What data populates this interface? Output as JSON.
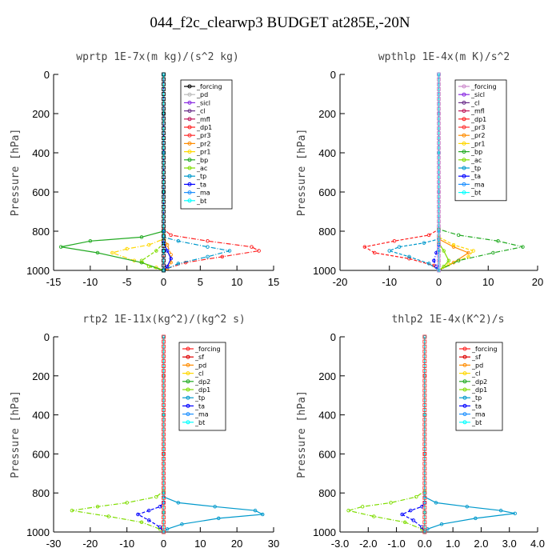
{
  "title": "044_f2c_clearwp3  BUDGET at285E,-20N",
  "chart_data": [
    {
      "type": "line",
      "title": "wprtp   1E-7x(m kg)/(s^2 kg)",
      "ylabel": "Pressure [hPa]",
      "ylim": [
        0,
        1000
      ],
      "xlim": [
        -15,
        15
      ],
      "xticks": [
        "-15",
        "-10",
        "-5",
        "0",
        "5",
        "10",
        "15"
      ],
      "yticks": [
        "0",
        "200",
        "400",
        "600",
        "800",
        "1000"
      ],
      "legend": "top-right",
      "series": [
        {
          "name": "_forcing",
          "color": "#000000",
          "x": [
            0,
            0,
            0,
            0,
            0,
            0,
            0
          ],
          "y": [
            0,
            200,
            400,
            600,
            800,
            900,
            1000
          ]
        },
        {
          "name": "_pd",
          "color": "#bbbbbb",
          "x": [
            0,
            0,
            0,
            0,
            0
          ],
          "y": [
            0,
            400,
            800,
            900,
            1000
          ]
        },
        {
          "name": "_sicl",
          "color": "#8a2be2",
          "x": [
            0,
            0,
            0,
            0,
            0
          ],
          "y": [
            0,
            400,
            800,
            900,
            1000
          ]
        },
        {
          "name": "_cl",
          "color": "#6b2f8a",
          "x": [
            0,
            0,
            0,
            0,
            0
          ],
          "y": [
            0,
            400,
            800,
            900,
            1000
          ]
        },
        {
          "name": "_mfl",
          "color": "#c0185a",
          "x": [
            0,
            0,
            0,
            0,
            0
          ],
          "y": [
            0,
            400,
            800,
            900,
            1000
          ]
        },
        {
          "name": "_dp1",
          "color": "#ff2020",
          "x": [
            0,
            0,
            1,
            6,
            12,
            13,
            8,
            3,
            0.5,
            0
          ],
          "y": [
            0,
            790,
            820,
            850,
            880,
            900,
            930,
            960,
            990,
            1000
          ]
        },
        {
          "name": "_pr3",
          "color": "#ff3030",
          "x": [
            0,
            0,
            0,
            0,
            0
          ],
          "y": [
            0,
            400,
            800,
            900,
            1000
          ]
        },
        {
          "name": "_pr2",
          "color": "#ff8c00",
          "x": [
            0,
            0,
            0.5,
            1,
            1,
            0.5,
            0
          ],
          "y": [
            0,
            820,
            870,
            920,
            960,
            990,
            1000
          ]
        },
        {
          "name": "_pr1",
          "color": "#ffd700",
          "x": [
            0,
            0,
            -2,
            -5,
            -7,
            -4,
            -1,
            0
          ],
          "y": [
            0,
            840,
            870,
            890,
            910,
            950,
            985,
            1000
          ]
        },
        {
          "name": "_bp",
          "color": "#22aa22",
          "x": [
            0,
            0,
            -3,
            -10,
            -14,
            -9,
            -3,
            0
          ],
          "y": [
            0,
            800,
            830,
            850,
            880,
            910,
            960,
            1000
          ]
        },
        {
          "name": "_ac",
          "color": "#7fdd00",
          "x": [
            0,
            0,
            -1,
            -3,
            -2,
            0
          ],
          "y": [
            0,
            860,
            900,
            950,
            980,
            1000
          ]
        },
        {
          "name": "_tp",
          "color": "#0099cc",
          "x": [
            0,
            0,
            2,
            6,
            9,
            6,
            2,
            0
          ],
          "y": [
            0,
            830,
            850,
            880,
            900,
            930,
            965,
            1000
          ]
        },
        {
          "name": "_ta",
          "color": "#0000ff",
          "x": [
            0,
            0,
            0.5,
            1,
            0.5,
            0
          ],
          "y": [
            0,
            860,
            900,
            940,
            980,
            1000
          ]
        },
        {
          "name": "_ma",
          "color": "#1e90ff",
          "x": [
            0,
            0,
            0,
            0,
            0
          ],
          "y": [
            0,
            400,
            800,
            900,
            1000
          ]
        },
        {
          "name": "_bt",
          "color": "#00ffff",
          "x": [
            0,
            0,
            0,
            0,
            0
          ],
          "y": [
            0,
            400,
            800,
            900,
            1000
          ]
        }
      ]
    },
    {
      "type": "line",
      "title": "wpthlp   1E-4x(m K)/s^2",
      "ylabel": "Pressure [hPa]",
      "ylim": [
        0,
        1000
      ],
      "xlim": [
        -20,
        20
      ],
      "xticks": [
        "-20",
        "-10",
        "0",
        "10",
        "20"
      ],
      "yticks": [
        "0",
        "200",
        "400",
        "600",
        "800",
        "1000"
      ],
      "legend": "top-right",
      "series": [
        {
          "name": "_forcing",
          "color": "#cc88cc",
          "x": [
            0,
            0,
            0,
            0,
            0,
            0,
            0
          ],
          "y": [
            0,
            200,
            400,
            600,
            800,
            900,
            1000
          ]
        },
        {
          "name": "_sicl",
          "color": "#8a2be2",
          "x": [
            0,
            0,
            0,
            0,
            0
          ],
          "y": [
            0,
            400,
            800,
            900,
            1000
          ]
        },
        {
          "name": "_cl",
          "color": "#6b2f8a",
          "x": [
            0,
            0,
            0,
            0,
            0
          ],
          "y": [
            0,
            400,
            800,
            900,
            1000
          ]
        },
        {
          "name": "_mfl",
          "color": "#c0185a",
          "x": [
            0,
            0,
            0,
            0,
            0
          ],
          "y": [
            0,
            400,
            800,
            900,
            1000
          ]
        },
        {
          "name": "_dp1",
          "color": "#ff2020",
          "x": [
            0,
            0,
            -2,
            -9,
            -15,
            -13,
            -6,
            -1,
            0
          ],
          "y": [
            0,
            790,
            820,
            850,
            880,
            910,
            940,
            975,
            1000
          ]
        },
        {
          "name": "_pr3",
          "color": "#ff3030",
          "x": [
            0,
            0,
            0,
            0,
            0
          ],
          "y": [
            0,
            400,
            800,
            900,
            1000
          ]
        },
        {
          "name": "_pr2",
          "color": "#ff8c00",
          "x": [
            0,
            0,
            3,
            6,
            3,
            0
          ],
          "y": [
            0,
            840,
            880,
            910,
            960,
            1000
          ]
        },
        {
          "name": "_pr1",
          "color": "#ffd700",
          "x": [
            0,
            0,
            3,
            7,
            6,
            2,
            0
          ],
          "y": [
            0,
            830,
            870,
            900,
            930,
            970,
            1000
          ]
        },
        {
          "name": "_bp",
          "color": "#22aa22",
          "x": [
            0,
            0,
            4,
            12,
            17,
            11,
            4,
            0
          ],
          "y": [
            0,
            790,
            820,
            850,
            880,
            910,
            950,
            1000
          ]
        },
        {
          "name": "_ac",
          "color": "#7fdd00",
          "x": [
            0,
            0,
            1,
            2,
            1,
            0
          ],
          "y": [
            0,
            860,
            900,
            950,
            980,
            1000
          ]
        },
        {
          "name": "_tp",
          "color": "#0099cc",
          "x": [
            0,
            0,
            -3,
            -8,
            -10,
            -6,
            -2,
            0
          ],
          "y": [
            0,
            840,
            860,
            880,
            900,
            930,
            965,
            1000
          ]
        },
        {
          "name": "_ta",
          "color": "#0000ff",
          "x": [
            0,
            0,
            -0.5,
            -1,
            -0.5,
            0
          ],
          "y": [
            0,
            870,
            910,
            950,
            980,
            1000
          ]
        },
        {
          "name": "_ma",
          "color": "#1e90ff",
          "x": [
            0,
            0,
            0,
            0,
            0
          ],
          "y": [
            0,
            400,
            800,
            900,
            1000
          ]
        },
        {
          "name": "_bt",
          "color": "#00ffff",
          "x": [
            0,
            0,
            0,
            0,
            0
          ],
          "y": [
            0,
            400,
            800,
            900,
            1000
          ]
        }
      ]
    },
    {
      "type": "line",
      "title": "rtp2   1E-11x(kg^2)/(kg^2 s)",
      "ylabel": "Pressure [hPa]",
      "ylim": [
        0,
        1000
      ],
      "xlim": [
        -30,
        30
      ],
      "xticks": [
        "-30",
        "-20",
        "-10",
        "0",
        "10",
        "20",
        "30"
      ],
      "yticks": [
        "0",
        "200",
        "400",
        "600",
        "800",
        "1000"
      ],
      "legend": "top-right",
      "series": [
        {
          "name": "_forcing",
          "color": "#ff2020",
          "x": [
            0,
            0,
            0,
            0,
            0,
            0,
            0
          ],
          "y": [
            0,
            200,
            400,
            600,
            800,
            900,
            1000
          ]
        },
        {
          "name": "_sf",
          "color": "#dd0000",
          "x": [
            0,
            0,
            0,
            0,
            0
          ],
          "y": [
            0,
            400,
            800,
            900,
            1000
          ]
        },
        {
          "name": "_pd",
          "color": "#ff8c00",
          "x": [
            0,
            0,
            0,
            0,
            0
          ],
          "y": [
            0,
            400,
            800,
            900,
            1000
          ]
        },
        {
          "name": "_cl",
          "color": "#ffd700",
          "x": [
            0,
            0,
            0,
            0,
            0
          ],
          "y": [
            0,
            400,
            800,
            900,
            1000
          ]
        },
        {
          "name": "_dp2",
          "color": "#22aa22",
          "x": [
            0,
            0,
            0,
            0,
            0
          ],
          "y": [
            0,
            400,
            800,
            900,
            1000
          ]
        },
        {
          "name": "_dp1",
          "color": "#7fdd00",
          "x": [
            0,
            0,
            -2,
            -10,
            -18,
            -25,
            -15,
            -6,
            -1,
            0
          ],
          "y": [
            0,
            790,
            820,
            850,
            870,
            890,
            920,
            950,
            985,
            1000
          ]
        },
        {
          "name": "_tp",
          "color": "#0099cc",
          "x": [
            0,
            0,
            4,
            14,
            25,
            27,
            15,
            5,
            1,
            0
          ],
          "y": [
            0,
            820,
            850,
            870,
            890,
            910,
            930,
            960,
            985,
            1000
          ]
        },
        {
          "name": "_ta",
          "color": "#0000ff",
          "x": [
            0,
            0,
            -1,
            -4,
            -7,
            -4,
            -1,
            0
          ],
          "y": [
            0,
            850,
            870,
            890,
            910,
            940,
            975,
            1000
          ]
        },
        {
          "name": "_ma",
          "color": "#1e90ff",
          "x": [
            0,
            0,
            0,
            0,
            0
          ],
          "y": [
            0,
            400,
            800,
            900,
            1000
          ]
        },
        {
          "name": "_bt",
          "color": "#00ffff",
          "x": [
            0,
            0,
            0,
            0,
            0
          ],
          "y": [
            0,
            400,
            800,
            900,
            1000
          ]
        }
      ]
    },
    {
      "type": "line",
      "title": "thlp2   1E-4x(K^2)/s",
      "ylabel": "Pressure [hPa]",
      "ylim": [
        0,
        1000
      ],
      "xlim": [
        -3,
        4
      ],
      "xticks": [
        "-3.0",
        "-2.0",
        "-1.0",
        "0.0",
        "1.0",
        "2.0",
        "3.0",
        "4.0"
      ],
      "yticks": [
        "0",
        "200",
        "400",
        "600",
        "800",
        "1000"
      ],
      "legend": "top-right",
      "series": [
        {
          "name": "_forcing",
          "color": "#ff2020",
          "x": [
            0,
            0,
            0,
            0,
            0,
            0,
            0
          ],
          "y": [
            0,
            200,
            400,
            600,
            800,
            900,
            1000
          ]
        },
        {
          "name": "_sf",
          "color": "#dd0000",
          "x": [
            0,
            0,
            0,
            0,
            0
          ],
          "y": [
            0,
            400,
            800,
            900,
            1000
          ]
        },
        {
          "name": "_pd",
          "color": "#ff8c00",
          "x": [
            0,
            0,
            0,
            0,
            0
          ],
          "y": [
            0,
            400,
            800,
            900,
            1000
          ]
        },
        {
          "name": "_cl",
          "color": "#ffd700",
          "x": [
            0,
            0,
            0,
            0,
            0
          ],
          "y": [
            0,
            400,
            800,
            900,
            1000
          ]
        },
        {
          "name": "_dp2",
          "color": "#22aa22",
          "x": [
            0,
            0,
            0,
            0,
            0
          ],
          "y": [
            0,
            400,
            800,
            900,
            1000
          ]
        },
        {
          "name": "_dp1",
          "color": "#7fdd00",
          "x": [
            0,
            0,
            -0.3,
            -1.2,
            -2.2,
            -2.7,
            -1.8,
            -0.7,
            -0.1,
            0
          ],
          "y": [
            0,
            790,
            820,
            850,
            870,
            890,
            920,
            950,
            985,
            1000
          ]
        },
        {
          "name": "_tp",
          "color": "#0099cc",
          "x": [
            0,
            0,
            0.4,
            1.5,
            2.7,
            3.2,
            1.8,
            0.6,
            0.1,
            0
          ],
          "y": [
            0,
            820,
            850,
            870,
            890,
            905,
            930,
            960,
            985,
            1000
          ]
        },
        {
          "name": "_ta",
          "color": "#0000ff",
          "x": [
            0,
            0,
            -0.1,
            -0.5,
            -0.8,
            -0.4,
            -0.1,
            0
          ],
          "y": [
            0,
            850,
            870,
            890,
            910,
            940,
            975,
            1000
          ]
        },
        {
          "name": "_ma",
          "color": "#1e90ff",
          "x": [
            0,
            0,
            0,
            0,
            0
          ],
          "y": [
            0,
            400,
            800,
            900,
            1000
          ]
        },
        {
          "name": "_bt",
          "color": "#00ffff",
          "x": [
            0,
            0,
            0,
            0,
            0
          ],
          "y": [
            0,
            400,
            800,
            900,
            1000
          ]
        }
      ]
    }
  ]
}
